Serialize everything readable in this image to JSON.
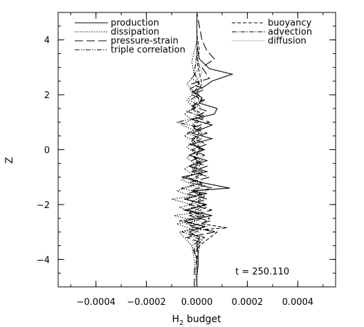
{
  "chart_data": {
    "type": "line",
    "xlabel": "H",
    "xlabel_sub": "2",
    "xlabel_suffix": " budget",
    "ylabel": "Z",
    "xlim": [
      -0.00055,
      0.00055
    ],
    "ylim": [
      -5,
      5
    ],
    "x_ticks": [
      -0.0004,
      -0.0002,
      0.0,
      0.0002,
      0.0004
    ],
    "x_tick_labels": [
      "−0.0004",
      "−0.0002",
      "0.0000",
      "0.0002",
      "0.0004"
    ],
    "y_ticks": [
      -4,
      -2,
      0,
      2,
      4
    ],
    "y_tick_labels": [
      "−4",
      "−2",
      "0",
      "2",
      "4"
    ],
    "annotation": "t = 250.110",
    "grid": false,
    "legend_placement": "top",
    "series": [
      {
        "name": "production",
        "style": "solid",
        "points": [
          [
            0.0,
            -5
          ],
          [
            0.0,
            -4.6
          ],
          [
            5e-06,
            -4.2
          ],
          [
            5e-06,
            -3.8
          ],
          [
            0.0,
            -3.4
          ],
          [
            1e-05,
            -3.2
          ],
          [
            -3e-05,
            -3.0
          ],
          [
            3e-05,
            -2.8
          ],
          [
            -5e-05,
            -2.6
          ],
          [
            6e-05,
            -2.4
          ],
          [
            -4e-05,
            -2.2
          ],
          [
            4e-05,
            -2.0
          ],
          [
            -5e-05,
            -1.8
          ],
          [
            4e-05,
            -1.6
          ],
          [
            -2e-05,
            -1.5
          ],
          [
            0.00013,
            -1.4
          ],
          [
            2e-05,
            -1.2
          ],
          [
            -6e-05,
            -1.0
          ],
          [
            4e-05,
            -0.8
          ],
          [
            -3e-05,
            -0.6
          ],
          [
            4e-05,
            -0.4
          ],
          [
            -3e-05,
            -0.2
          ],
          [
            3e-05,
            0.0
          ],
          [
            -2e-05,
            0.2
          ],
          [
            6e-05,
            0.4
          ],
          [
            -2e-05,
            0.6
          ],
          [
            6e-05,
            0.9
          ],
          [
            -2e-05,
            1.1
          ],
          [
            7e-05,
            1.3
          ],
          [
            8e-05,
            1.5
          ],
          [
            1e-05,
            1.7
          ],
          [
            2e-05,
            1.9
          ],
          [
            -2e-05,
            2.1
          ],
          [
            3e-05,
            2.3
          ],
          [
            6e-05,
            2.5
          ],
          [
            0.00014,
            2.75
          ],
          [
            5e-05,
            2.95
          ],
          [
            1e-05,
            3.3
          ],
          [
            0.0,
            3.8
          ],
          [
            0.0,
            4.2
          ],
          [
            0.0,
            4.6
          ],
          [
            0.0,
            5
          ]
        ]
      },
      {
        "name": "dissipation",
        "style": "dotted",
        "points": [
          [
            0.0,
            -5
          ],
          [
            -1e-05,
            -4.0
          ],
          [
            -2e-05,
            -3.5
          ],
          [
            -5e-05,
            -3.2
          ],
          [
            -7e-05,
            -3.0
          ],
          [
            -2e-05,
            -2.9
          ],
          [
            -8e-05,
            -2.7
          ],
          [
            0.0,
            -2.6
          ],
          [
            -9e-05,
            -2.4
          ],
          [
            -1e-05,
            -2.3
          ],
          [
            -7e-05,
            -2.1
          ],
          [
            -2e-05,
            -2.0
          ],
          [
            -0.0001,
            -1.8
          ],
          [
            -2e-05,
            -1.7
          ],
          [
            -8e-05,
            -1.5
          ],
          [
            -1e-05,
            -1.3
          ],
          [
            -6e-05,
            -1.1
          ],
          [
            -2e-05,
            -0.9
          ],
          [
            -5e-05,
            -0.7
          ],
          [
            -1e-05,
            -0.5
          ],
          [
            -4e-05,
            -0.3
          ],
          [
            -1e-05,
            -0.1
          ],
          [
            -4e-05,
            0.1
          ],
          [
            -1e-05,
            0.3
          ],
          [
            -5e-05,
            0.5
          ],
          [
            -1e-05,
            0.7
          ],
          [
            -6e-05,
            0.9
          ],
          [
            -2e-05,
            1.1
          ],
          [
            -5e-05,
            1.3
          ],
          [
            -1e-05,
            1.5
          ],
          [
            -4e-05,
            1.8
          ],
          [
            -1e-05,
            2.1
          ],
          [
            -4e-05,
            2.4
          ],
          [
            -1e-05,
            2.7
          ],
          [
            -2e-05,
            3.2
          ],
          [
            0.0,
            4.0
          ],
          [
            0.0,
            5
          ]
        ]
      },
      {
        "name": "pressure-strain",
        "style": "longdash",
        "points": [
          [
            -1e-05,
            -5
          ],
          [
            -1e-05,
            -4.4
          ],
          [
            0.0,
            -4.0
          ],
          [
            0.0,
            -3.6
          ],
          [
            2e-05,
            -3.4
          ],
          [
            -4e-05,
            -3.2
          ],
          [
            7e-05,
            -3.0
          ],
          [
            -3e-05,
            -2.8
          ],
          [
            5e-05,
            -2.6
          ],
          [
            -3e-05,
            -2.4
          ],
          [
            6e-05,
            -2.2
          ],
          [
            -3e-05,
            -2.0
          ],
          [
            4e-05,
            -1.8
          ],
          [
            -4e-05,
            -1.6
          ],
          [
            6e-05,
            -1.4
          ],
          [
            -3e-05,
            -1.2
          ],
          [
            5e-05,
            -1.0
          ],
          [
            -2e-05,
            -0.8
          ],
          [
            4e-05,
            -0.6
          ],
          [
            -2e-05,
            -0.4
          ],
          [
            3e-05,
            -0.2
          ],
          [
            -2e-05,
            0.0
          ],
          [
            4e-05,
            0.2
          ],
          [
            -2e-05,
            0.4
          ],
          [
            4e-05,
            0.6
          ],
          [
            -2e-05,
            0.8
          ],
          [
            5e-05,
            1.0
          ],
          [
            -1e-05,
            1.2
          ],
          [
            4e-05,
            1.4
          ],
          [
            -2e-05,
            1.6
          ],
          [
            3e-05,
            1.8
          ],
          [
            -2e-05,
            2.0
          ],
          [
            3e-05,
            2.2
          ],
          [
            -2e-05,
            2.4
          ],
          [
            5e-05,
            2.6
          ],
          [
            2e-05,
            3.0
          ],
          [
            7e-05,
            3.3
          ],
          [
            4e-05,
            3.6
          ],
          [
            2e-05,
            4.0
          ],
          [
            1e-05,
            4.5
          ],
          [
            0.0,
            5
          ]
        ]
      },
      {
        "name": "triple correlation",
        "style": "dashdotdot",
        "points": [
          [
            0.0,
            -5
          ],
          [
            0.0,
            -4.0
          ],
          [
            -2e-05,
            -3.5
          ],
          [
            3e-05,
            -3.2
          ],
          [
            -6e-05,
            -3.0
          ],
          [
            4e-05,
            -2.8
          ],
          [
            -7e-05,
            -2.6
          ],
          [
            3e-05,
            -2.4
          ],
          [
            -5e-05,
            -2.2
          ],
          [
            3e-05,
            -2.0
          ],
          [
            -4e-05,
            -1.8
          ],
          [
            2e-05,
            -1.6
          ],
          [
            -6e-05,
            -1.4
          ],
          [
            2e-05,
            -1.2
          ],
          [
            -4e-05,
            -1.0
          ],
          [
            2e-05,
            -0.8
          ],
          [
            -3e-05,
            -0.6
          ],
          [
            2e-05,
            -0.4
          ],
          [
            -3e-05,
            -0.2
          ],
          [
            2e-05,
            0.0
          ],
          [
            -3e-05,
            0.2
          ],
          [
            2e-05,
            0.4
          ],
          [
            -4e-05,
            0.6
          ],
          [
            2e-05,
            0.8
          ],
          [
            -8e-05,
            1.0
          ],
          [
            2e-05,
            1.2
          ],
          [
            -4e-05,
            1.4
          ],
          [
            1e-05,
            1.6
          ],
          [
            -3e-05,
            1.8
          ],
          [
            1e-05,
            2.0
          ],
          [
            -3e-05,
            2.2
          ],
          [
            1e-05,
            2.4
          ],
          [
            -2e-05,
            2.6
          ],
          [
            1e-05,
            3.0
          ],
          [
            0.0,
            3.5
          ],
          [
            0.0,
            5
          ]
        ]
      },
      {
        "name": "buoyancy",
        "style": "shortdash",
        "points": [
          [
            0.0,
            -5
          ],
          [
            0.0,
            -4.0
          ],
          [
            1e-05,
            -3.5
          ],
          [
            8e-05,
            -3.0
          ],
          [
            3e-05,
            -2.9
          ],
          [
            0.00012,
            -2.85
          ],
          [
            2e-05,
            -2.7
          ],
          [
            5e-05,
            -2.5
          ],
          [
            -1e-05,
            -2.3
          ],
          [
            4e-05,
            -2.1
          ],
          [
            0.0,
            -1.9
          ],
          [
            3e-05,
            -1.7
          ],
          [
            -1e-05,
            -1.5
          ],
          [
            3e-05,
            -1.3
          ],
          [
            -1e-05,
            -1.1
          ],
          [
            2e-05,
            -0.9
          ],
          [
            -1e-05,
            -0.7
          ],
          [
            2e-05,
            -0.5
          ],
          [
            -1e-05,
            -0.3
          ],
          [
            2e-05,
            0.0
          ],
          [
            -1e-05,
            0.3
          ],
          [
            2e-05,
            0.6
          ],
          [
            -1e-05,
            0.9
          ],
          [
            3e-05,
            1.2
          ],
          [
            -1e-05,
            1.5
          ],
          [
            2e-05,
            1.8
          ],
          [
            0.0,
            2.1
          ],
          [
            2e-05,
            2.4
          ],
          [
            1e-05,
            2.8
          ],
          [
            0.0,
            3.2
          ],
          [
            1e-05,
            3.6
          ],
          [
            0.0,
            4.2
          ],
          [
            0.0,
            5
          ]
        ]
      },
      {
        "name": "advection",
        "style": "dashdot",
        "points": [
          [
            0.0,
            -5
          ],
          [
            0.0,
            -4.0
          ],
          [
            -1e-05,
            -3.6
          ],
          [
            2e-05,
            -3.3
          ],
          [
            -3e-05,
            -3.1
          ],
          [
            2e-05,
            -2.9
          ],
          [
            -4e-05,
            -2.7
          ],
          [
            2e-05,
            -2.5
          ],
          [
            -3e-05,
            -2.3
          ],
          [
            2e-05,
            -2.1
          ],
          [
            -2e-05,
            -1.9
          ],
          [
            2e-05,
            -1.7
          ],
          [
            -2e-05,
            -1.5
          ],
          [
            2e-05,
            -1.3
          ],
          [
            -2e-05,
            -1.1
          ],
          [
            1e-05,
            -0.9
          ],
          [
            -2e-05,
            -0.7
          ],
          [
            1e-05,
            -0.5
          ],
          [
            -1e-05,
            -0.3
          ],
          [
            1e-05,
            0.0
          ],
          [
            -2e-05,
            0.3
          ],
          [
            1e-05,
            0.6
          ],
          [
            -2e-05,
            0.9
          ],
          [
            2e-05,
            1.2
          ],
          [
            -2e-05,
            1.5
          ],
          [
            1e-05,
            1.8
          ],
          [
            -1e-05,
            2.1
          ],
          [
            1e-05,
            2.4
          ],
          [
            -1e-05,
            2.8
          ],
          [
            0.0,
            3.5
          ],
          [
            0.0,
            5
          ]
        ]
      },
      {
        "name": "diffusion",
        "style": "finedot",
        "points": [
          [
            0.0,
            -5
          ],
          [
            0.0,
            -4.0
          ],
          [
            1e-05,
            -3.6
          ],
          [
            -2e-05,
            -3.3
          ],
          [
            3e-05,
            -3.1
          ],
          [
            -3e-05,
            -2.9
          ],
          [
            4e-05,
            -2.7
          ],
          [
            -2e-05,
            -2.5
          ],
          [
            3e-05,
            -2.3
          ],
          [
            -2e-05,
            -2.1
          ],
          [
            3e-05,
            -1.9
          ],
          [
            -2e-05,
            -1.7
          ],
          [
            4e-05,
            -1.5
          ],
          [
            -2e-05,
            -1.3
          ],
          [
            2e-05,
            -1.1
          ],
          [
            -1e-05,
            -0.9
          ],
          [
            2e-05,
            -0.7
          ],
          [
            -1e-05,
            -0.5
          ],
          [
            2e-05,
            -0.3
          ],
          [
            -1e-05,
            0.0
          ],
          [
            2e-05,
            0.3
          ],
          [
            -1e-05,
            0.6
          ],
          [
            2e-05,
            0.9
          ],
          [
            -1e-05,
            1.2
          ],
          [
            2e-05,
            1.5
          ],
          [
            -1e-05,
            1.8
          ],
          [
            1e-05,
            2.1
          ],
          [
            -1e-05,
            2.4
          ],
          [
            2e-05,
            2.8
          ],
          [
            0.0,
            3.3
          ],
          [
            0.0,
            5
          ]
        ]
      }
    ]
  }
}
